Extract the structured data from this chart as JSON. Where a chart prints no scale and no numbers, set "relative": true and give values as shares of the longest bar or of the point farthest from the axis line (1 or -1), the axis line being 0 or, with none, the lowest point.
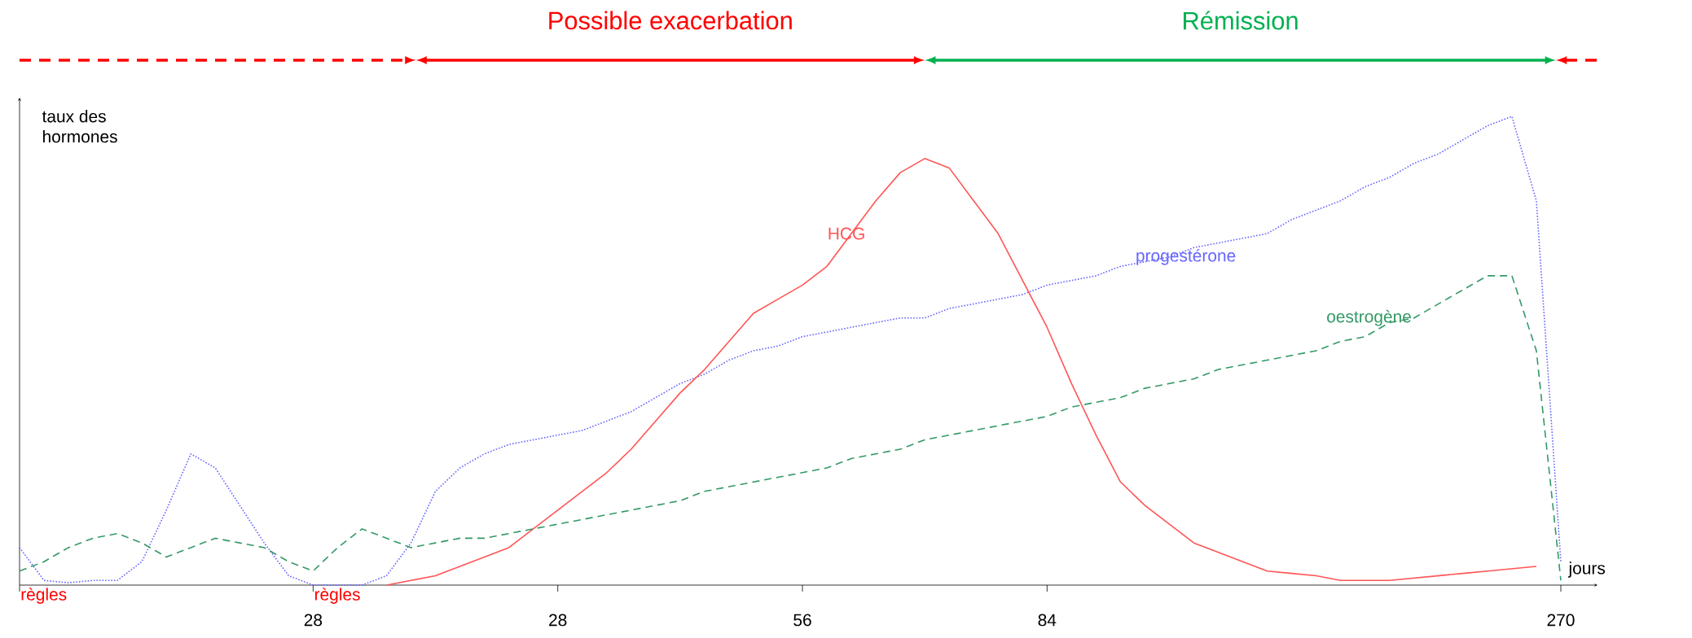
{
  "chart_data": {
    "type": "line",
    "relative": true,
    "xlabel": "jours",
    "ylabel": "taux des hormones",
    "categories": [
      null,
      null,
      null,
      null,
      null,
      null,
      null,
      null,
      null,
      null,
      null,
      null,
      "28",
      null,
      null,
      null,
      null,
      null,
      null,
      null,
      null,
      null,
      "28",
      null,
      null,
      null,
      null,
      null,
      null,
      null,
      null,
      null,
      "56",
      null,
      null,
      null,
      null,
      null,
      null,
      null,
      null,
      null,
      "84",
      null,
      null,
      null,
      null,
      null,
      null,
      null,
      null,
      null,
      null,
      null,
      null,
      null,
      null,
      null,
      null,
      null,
      null,
      null,
      null,
      "270",
      null
    ],
    "series": [
      {
        "name": "progestérone",
        "color": "#6666ff",
        "line_style": "dotted",
        "values": [
          0.08,
          0.01,
          0.005,
          0.01,
          0.01,
          0.05,
          0.16,
          0.28,
          0.25,
          0.17,
          0.09,
          0.02,
          0,
          0,
          0,
          0.02,
          0.09,
          0.2,
          0.25,
          0.28,
          0.3,
          0.31,
          0.32,
          0.33,
          0.35,
          0.37,
          0.4,
          0.43,
          0.45,
          0.48,
          0.5,
          0.51,
          0.53,
          0.54,
          0.55,
          0.56,
          0.57,
          0.57,
          0.59,
          0.6,
          0.61,
          0.62,
          0.64,
          0.65,
          0.66,
          0.68,
          0.69,
          0.7,
          0.72,
          0.73,
          0.74,
          0.75,
          0.78,
          0.8,
          0.82,
          0.85,
          0.87,
          0.9,
          0.92,
          0.95,
          0.98,
          1.0,
          0.82,
          0.05,
          null
        ]
      },
      {
        "name": "HCG",
        "color": "#ff5555",
        "line_style": "solid",
        "values": [
          null,
          null,
          null,
          null,
          null,
          null,
          null,
          null,
          null,
          null,
          null,
          null,
          null,
          null,
          null,
          0,
          0.01,
          0.02,
          0.04,
          0.06,
          0.08,
          0.12,
          0.16,
          0.2,
          0.24,
          0.29,
          0.35,
          0.41,
          0.46,
          0.52,
          0.58,
          0.61,
          0.64,
          0.68,
          0.75,
          0.82,
          0.88,
          0.91,
          0.89,
          0.82,
          0.75,
          0.65,
          0.55,
          0.43,
          0.32,
          0.22,
          0.17,
          0.13,
          0.09,
          0.07,
          0.05,
          0.03,
          0.025,
          0.02,
          0.01,
          0.01,
          0.01,
          0.015,
          0.02,
          0.025,
          0.03,
          0.035,
          0.04,
          null,
          null
        ]
      },
      {
        "name": "oestrogène",
        "color": "#339966",
        "line_style": "dashed",
        "values": [
          0.03,
          0.05,
          0.08,
          0.1,
          0.11,
          0.09,
          0.06,
          0.08,
          0.1,
          0.09,
          0.08,
          0.05,
          0.03,
          0.08,
          0.12,
          0.1,
          0.08,
          0.09,
          0.1,
          0.1,
          0.11,
          0.12,
          0.13,
          0.14,
          0.15,
          0.16,
          0.17,
          0.18,
          0.2,
          0.21,
          0.22,
          0.23,
          0.24,
          0.25,
          0.27,
          0.28,
          0.29,
          0.31,
          0.32,
          0.33,
          0.34,
          0.35,
          0.36,
          0.38,
          0.39,
          0.4,
          0.42,
          0.43,
          0.44,
          0.46,
          0.47,
          0.48,
          0.49,
          0.5,
          0.52,
          0.53,
          0.56,
          0.57,
          0.6,
          0.63,
          0.66,
          0.66,
          0.5,
          0.01,
          null
        ]
      }
    ],
    "annotations": [
      "règles",
      "règles",
      "Possible exacerbation",
      "Rémission"
    ],
    "marker": "none"
  }
}
